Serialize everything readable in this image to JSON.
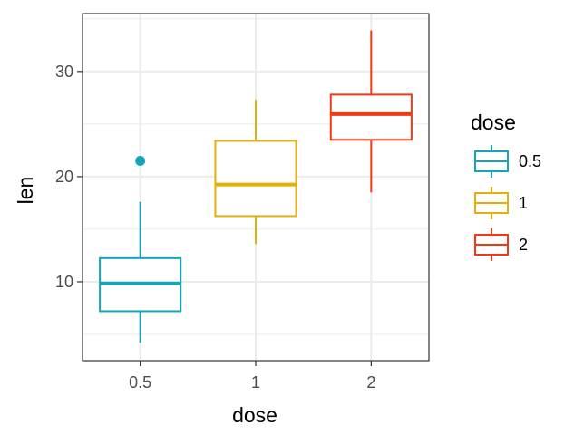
{
  "chart_data": {
    "type": "box",
    "title": "",
    "xlabel": "dose",
    "ylabel": "len",
    "categories": [
      "0.5",
      "1",
      "2"
    ],
    "ylim": [
      2.5,
      35.5
    ],
    "y_ticks": [
      10,
      20,
      30
    ],
    "grid": true,
    "legend": {
      "title": "dose",
      "position": "right",
      "items": [
        "0.5",
        "1",
        "2"
      ]
    },
    "colors": [
      "#14A5B8",
      "#E3B008",
      "#F03A13"
    ],
    "series": [
      {
        "category": "0.5",
        "whisker_low": 4.2,
        "q1": 7.2,
        "median": 9.85,
        "q3": 12.25,
        "whisker_high": 17.6,
        "outliers": [
          21.5
        ]
      },
      {
        "category": "1",
        "whisker_low": 13.6,
        "q1": 16.25,
        "median": 19.25,
        "q3": 23.4,
        "whisker_high": 27.3,
        "outliers": []
      },
      {
        "category": "2",
        "whisker_low": 18.5,
        "q1": 23.5,
        "median": 25.95,
        "q3": 27.8,
        "whisker_high": 33.9,
        "outliers": []
      }
    ]
  }
}
